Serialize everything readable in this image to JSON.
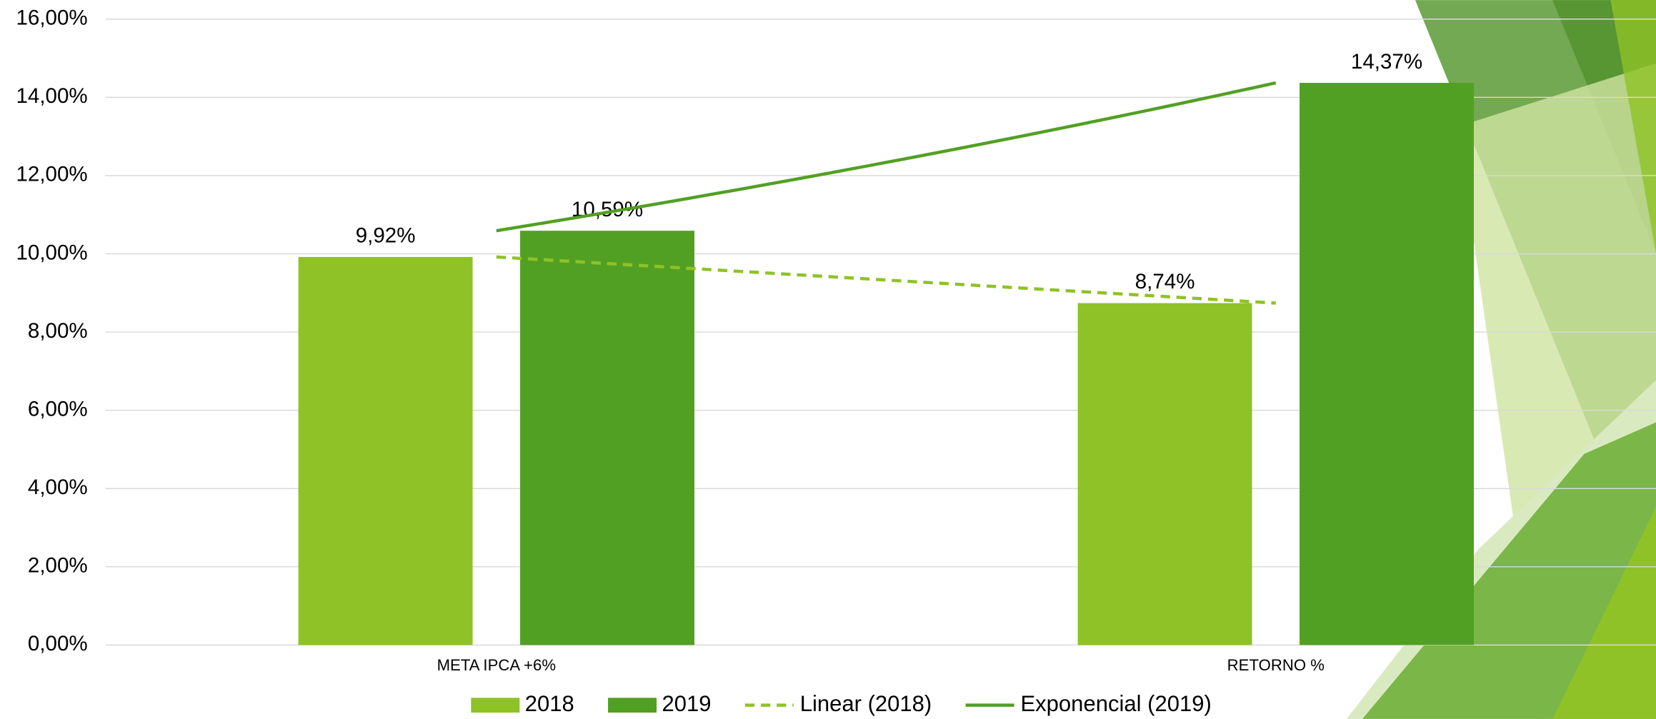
{
  "chart_data": {
    "type": "bar",
    "categories": [
      "META IPCA +6%",
      "RETORNO %"
    ],
    "series": [
      {
        "name": "2018",
        "color": "#8fc227",
        "values": [
          9.92,
          8.74
        ],
        "value_labels": [
          "9,92%",
          "8,74%"
        ]
      },
      {
        "name": "2019",
        "color": "#52a023",
        "values": [
          10.59,
          14.37
        ],
        "value_labels": [
          "10,59%",
          "14,37%"
        ]
      }
    ],
    "trendlines": [
      {
        "name": "Linear (2018)",
        "series": 0,
        "kind": "linear",
        "color": "#8fc227",
        "dashed": true
      },
      {
        "name": "Exponencial (2019)",
        "series": 1,
        "kind": "exponential",
        "color": "#52a023",
        "dashed": false
      }
    ],
    "ylim": [
      0,
      16
    ],
    "yticks": [
      {
        "value": 0,
        "label": "0,00%"
      },
      {
        "value": 2,
        "label": "2,00%"
      },
      {
        "value": 4,
        "label": "4,00%"
      },
      {
        "value": 6,
        "label": "6,00%"
      },
      {
        "value": 8,
        "label": "8,00%"
      },
      {
        "value": 10,
        "label": "10,00%"
      },
      {
        "value": 12,
        "label": "12,00%"
      },
      {
        "value": 14,
        "label": "14,00%"
      },
      {
        "value": 16,
        "label": "16,00%"
      }
    ],
    "grid": true
  }
}
